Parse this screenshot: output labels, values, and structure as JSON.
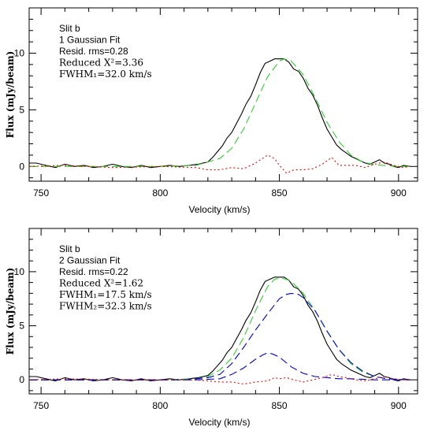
{
  "chart_data": [
    {
      "type": "line",
      "xlabel": "Velocity (km/s)",
      "ylabel": "Flux (mJy/beam)",
      "xlim": [
        745,
        908
      ],
      "ylim": [
        -1.3,
        14
      ],
      "xticks": [
        750,
        800,
        850,
        900
      ],
      "yticks": [
        0,
        5,
        10
      ],
      "annotations": [
        "Slit b",
        "1 Gaussian Fit",
        "Resid. rms=0.28",
        "Reduced X²=3.36",
        "FWHM₁=32.0 km/s"
      ],
      "series": [
        {
          "role": "data",
          "color": "#000000",
          "dash": "solid",
          "x": [
            745,
            748,
            752,
            756,
            760,
            764,
            768,
            772,
            776,
            780,
            784,
            788,
            792,
            796,
            800,
            804,
            808,
            812,
            816,
            820,
            822,
            824,
            826,
            828,
            830,
            832,
            834,
            836,
            838,
            840,
            842,
            844,
            846,
            848,
            850,
            852,
            854,
            856,
            858,
            860,
            862,
            864,
            866,
            868,
            870,
            872,
            874,
            876,
            878,
            880,
            882,
            884,
            886,
            888,
            890,
            892,
            894,
            896,
            898,
            900,
            902,
            905
          ],
          "y": [
            0.3,
            0.3,
            0.1,
            -0.1,
            0.2,
            0.0,
            0.1,
            -0.1,
            0.0,
            0.2,
            0.0,
            -0.1,
            0.1,
            -0.1,
            0.0,
            0.1,
            0.0,
            0.1,
            0.2,
            0.4,
            0.8,
            1.3,
            1.8,
            2.5,
            3.0,
            3.8,
            4.6,
            5.5,
            6.2,
            7.2,
            8.3,
            9.1,
            9.3,
            9.5,
            9.5,
            9.5,
            9.2,
            8.6,
            8.4,
            7.8,
            6.9,
            6.3,
            5.4,
            4.3,
            3.3,
            2.6,
            1.9,
            1.5,
            1.2,
            0.9,
            0.7,
            0.5,
            0.3,
            0.2,
            0.4,
            0.6,
            0.3,
            0.2,
            0.0,
            -0.1,
            0.1,
            0.0
          ]
        },
        {
          "role": "gaussian-fit",
          "color": "#33cc33",
          "dash": "longdash",
          "x": [
            745,
            800,
            815,
            825,
            830,
            835,
            840,
            845,
            850,
            852,
            855,
            860,
            865,
            870,
            875,
            880,
            885,
            890,
            900,
            905
          ],
          "y": [
            0,
            0,
            0.1,
            0.7,
            1.6,
            3.3,
            5.6,
            7.9,
            9.3,
            9.5,
            9.3,
            8.1,
            6.1,
            3.9,
            2.2,
            1.0,
            0.4,
            0.15,
            0,
            0
          ]
        },
        {
          "role": "residual",
          "color": "#ee0000",
          "dash": "dotted",
          "x": [
            745,
            760,
            780,
            800,
            815,
            820,
            825,
            830,
            835,
            840,
            845,
            848,
            850,
            853,
            856,
            860,
            864,
            868,
            872,
            875,
            878,
            882,
            886,
            890,
            894,
            898,
            902,
            905
          ],
          "y": [
            0,
            0.1,
            -0.1,
            0.0,
            -0.1,
            -0.3,
            -0.3,
            -0.1,
            -0.2,
            0.3,
            1.0,
            0.7,
            0.1,
            -0.6,
            -0.3,
            -0.3,
            -0.2,
            0.2,
            0.8,
            0.1,
            0.1,
            0.1,
            -0.1,
            0.2,
            0.4,
            0.1,
            -0.1,
            0.0
          ]
        }
      ]
    },
    {
      "type": "line",
      "xlabel": "Velocity (km/s)",
      "ylabel": "Flux (mJy/beam)",
      "xlim": [
        745,
        908
      ],
      "ylim": [
        -1.3,
        14
      ],
      "xticks": [
        750,
        800,
        850,
        900
      ],
      "yticks": [
        0,
        5,
        10
      ],
      "annotations": [
        "Slit b",
        "2 Gaussian Fit",
        "Resid. rms=0.22",
        "Reduced X²=1.62",
        "FWHM₁=17.5 km/s",
        "FWHM₂=32.3 km/s"
      ],
      "series": [
        {
          "role": "data",
          "color": "#000000",
          "dash": "solid",
          "x": [
            745,
            748,
            752,
            756,
            760,
            764,
            768,
            772,
            776,
            780,
            784,
            788,
            792,
            796,
            800,
            804,
            808,
            812,
            816,
            820,
            822,
            824,
            826,
            828,
            830,
            832,
            834,
            836,
            838,
            840,
            842,
            844,
            846,
            848,
            850,
            852,
            854,
            856,
            858,
            860,
            862,
            864,
            866,
            868,
            870,
            872,
            874,
            876,
            878,
            880,
            882,
            884,
            886,
            888,
            890,
            892,
            894,
            896,
            898,
            900,
            902,
            905
          ],
          "y": [
            0.3,
            0.3,
            0.1,
            -0.1,
            0.2,
            0.0,
            0.1,
            -0.1,
            0.0,
            0.2,
            0.0,
            -0.1,
            0.1,
            -0.1,
            0.0,
            0.1,
            0.0,
            0.1,
            0.2,
            0.4,
            0.8,
            1.3,
            1.8,
            2.5,
            3.0,
            3.8,
            4.6,
            5.5,
            6.2,
            7.2,
            8.3,
            9.1,
            9.3,
            9.5,
            9.5,
            9.5,
            9.2,
            8.6,
            8.4,
            7.8,
            6.9,
            6.3,
            5.4,
            4.3,
            3.3,
            2.6,
            1.9,
            1.5,
            1.2,
            0.9,
            0.7,
            0.5,
            0.3,
            0.2,
            0.4,
            0.6,
            0.3,
            0.2,
            0.0,
            -0.1,
            0.1,
            0.0
          ]
        },
        {
          "role": "total-fit",
          "color": "#33cc33",
          "dash": "longdash",
          "x": [
            745,
            800,
            815,
            820,
            825,
            830,
            835,
            840,
            845,
            848,
            850,
            853,
            856,
            860,
            865,
            870,
            875,
            880,
            885,
            890,
            895,
            905
          ],
          "y": [
            0,
            0,
            0.1,
            0.3,
            0.9,
            2.0,
            3.9,
            6.4,
            8.6,
            9.3,
            9.4,
            9.3,
            8.9,
            8.0,
            6.4,
            4.5,
            2.8,
            1.5,
            0.7,
            0.3,
            0.1,
            0
          ]
        },
        {
          "role": "component-narrow",
          "color": "#0000cc",
          "dash": "longdash",
          "x": [
            745,
            815,
            825,
            830,
            835,
            840,
            843,
            845,
            847,
            850,
            855,
            860,
            865,
            870,
            875,
            880,
            890,
            905
          ],
          "y": [
            0,
            0,
            0.1,
            0.5,
            1.1,
            1.9,
            2.3,
            2.5,
            2.4,
            2.1,
            1.2,
            0.6,
            0.3,
            0.2,
            0.1,
            0.1,
            0,
            0
          ],
          "fwhm": 17.5
        },
        {
          "role": "component-broad",
          "color": "#0000cc",
          "dash": "longdash",
          "x": [
            745,
            810,
            815,
            820,
            825,
            830,
            835,
            840,
            845,
            850,
            853,
            855,
            858,
            860,
            865,
            870,
            875,
            880,
            885,
            890,
            895,
            905
          ],
          "y": [
            0,
            0,
            0.1,
            0.2,
            0.5,
            1.5,
            3.0,
            4.6,
            6.1,
            7.5,
            7.9,
            8.0,
            7.9,
            7.6,
            6.4,
            4.5,
            2.8,
            1.6,
            0.8,
            0.3,
            0.1,
            0
          ],
          "fwhm": 32.3
        },
        {
          "role": "residual",
          "color": "#ee0000",
          "dash": "dotted",
          "x": [
            745,
            760,
            780,
            800,
            815,
            820,
            825,
            830,
            835,
            840,
            845,
            848,
            850,
            853,
            856,
            860,
            864,
            868,
            872,
            875,
            878,
            882,
            886,
            890,
            894,
            898,
            902,
            905
          ],
          "y": [
            0,
            0.1,
            0.0,
            0.0,
            0.0,
            -0.1,
            -0.2,
            -0.2,
            -0.4,
            -0.2,
            -0.1,
            0.2,
            0.1,
            0.2,
            0.0,
            -0.2,
            0.0,
            0.2,
            0.5,
            0.3,
            0.2,
            0.0,
            -0.1,
            0.1,
            0.3,
            0.1,
            0.0,
            0.0
          ]
        }
      ]
    }
  ]
}
